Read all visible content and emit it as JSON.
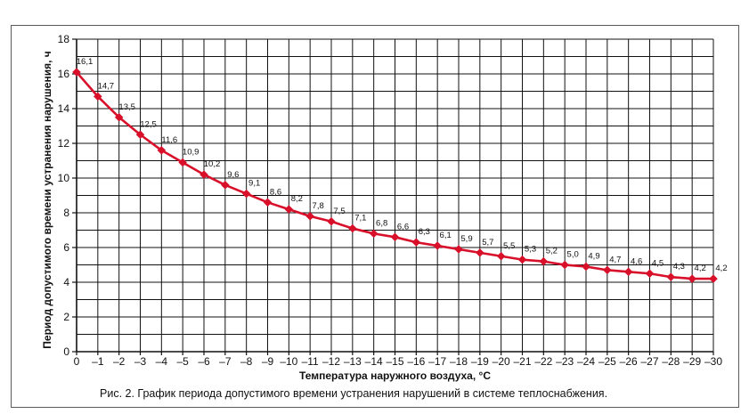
{
  "caption": "Рис. 2. График периода допустимого времени устранения нарушений в системе теплоснабжения.",
  "chart_data": {
    "type": "line",
    "title": "",
    "xlabel": "Температура наружного воздуха, °С",
    "ylabel": "Период допустимого времени устранения нарушения, ч",
    "xlim": [
      0,
      -30
    ],
    "ylim": [
      0,
      18
    ],
    "y_ticks": [
      0,
      2,
      4,
      6,
      8,
      10,
      12,
      14,
      16,
      18
    ],
    "x_tick_labels": [
      "0",
      "–1",
      "–2",
      "–3",
      "–4",
      "–5",
      "–6",
      "–7",
      "–8",
      "–9",
      "–10",
      "–11",
      "–12",
      "–13",
      "–14",
      "–15",
      "–16",
      "–17",
      "–18",
      "–19",
      "–20",
      "–21",
      "–22",
      "–23",
      "–24",
      "–25",
      "–26",
      "–27",
      "–28",
      "–29",
      "–30"
    ],
    "grid": true,
    "x": [
      0,
      -1,
      -2,
      -3,
      -4,
      -5,
      -6,
      -7,
      -8,
      -9,
      -10,
      -11,
      -12,
      -13,
      -14,
      -15,
      -16,
      -17,
      -18,
      -19,
      -20,
      -21,
      -22,
      -23,
      -24,
      -25,
      -26,
      -27,
      -28,
      -29,
      -30
    ],
    "values": [
      16.1,
      14.7,
      13.5,
      12.5,
      11.6,
      10.9,
      10.2,
      9.6,
      9.1,
      8.6,
      8.2,
      7.8,
      7.5,
      7.1,
      6.8,
      6.6,
      6.3,
      6.1,
      5.9,
      5.7,
      5.5,
      5.3,
      5.2,
      5.0,
      4.9,
      4.7,
      4.6,
      4.5,
      4.3,
      4.2,
      4.2
    ],
    "data_labels": [
      "16,1",
      "14,7",
      "13,5",
      "12,5",
      "11,6",
      "10,9",
      "10,2",
      "9,6",
      "9,1",
      "8,6",
      "8,2",
      "7,8",
      "7,5",
      "7,1",
      "6,8",
      "6,6",
      "6,3",
      "6,1",
      "5,9",
      "5,7",
      "5,5",
      "5,3",
      "5,2",
      "5,0",
      "4,9",
      "4,7",
      "4,6",
      "4,5",
      "4,3",
      "4,2",
      "4,2"
    ],
    "line_color": "#d8102a",
    "grid_color": "#111111"
  }
}
